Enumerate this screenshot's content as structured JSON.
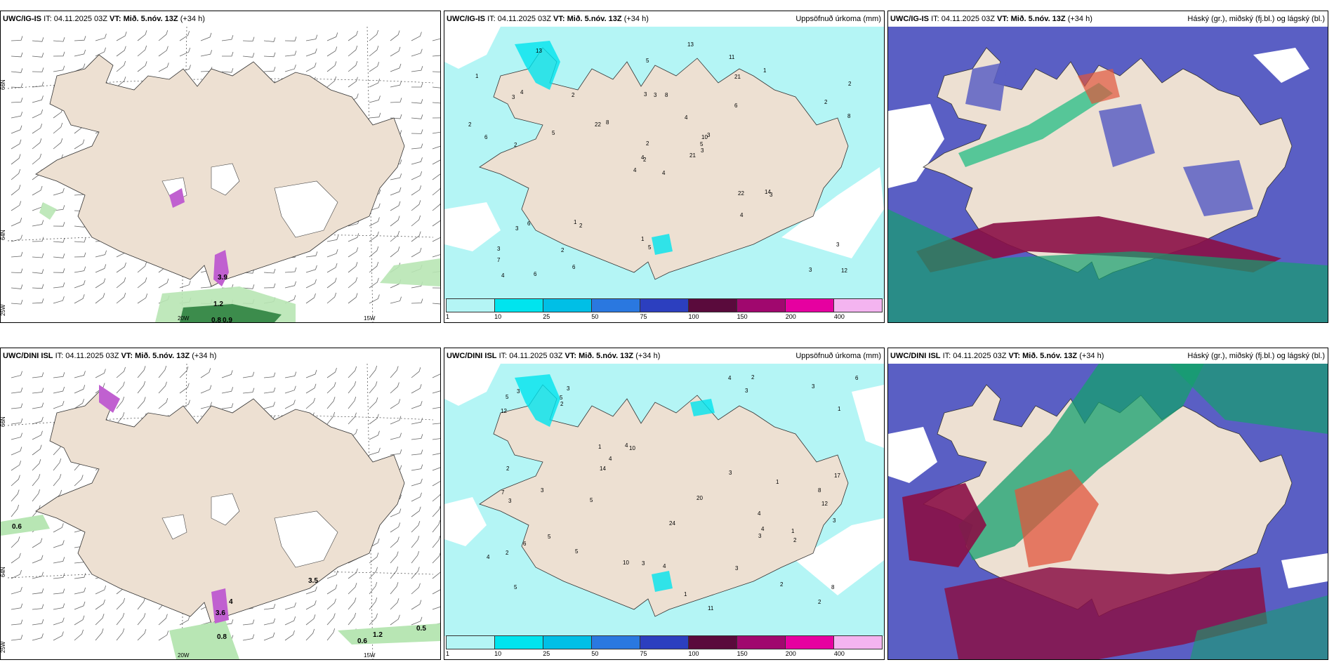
{
  "panels": [
    {
      "model": "UWC/IG-IS",
      "it": "IT: 04.11.2025 03Z",
      "vt_label": "VT:",
      "vt": "Mið. 5.nóv. 13Z",
      "lead": "(+34 h)",
      "right": ""
    },
    {
      "model": "UWC/IG-IS",
      "it": "IT: 04.11.2025 03Z",
      "vt_label": "VT:",
      "vt": "Mið. 5.nóv. 13Z",
      "lead": "(+34 h)",
      "right": "Uppsöfnuð úrkoma (mm)"
    },
    {
      "model": "UWC/IG-IS",
      "it": "IT: 04.11.2025 03Z",
      "vt_label": "VT:",
      "vt": "Mið. 5.nóv. 13Z",
      "lead": "(+34 h)",
      "right": "Háský (gr.), miðský (fj.bl.) og lágský (bl.)"
    },
    {
      "model": "UWC/DINI ISL",
      "it": "IT: 04.11.2025 03Z",
      "vt_label": "VT:",
      "vt": "Mið. 5.nóv. 13Z",
      "lead": "(+34 h)",
      "right": ""
    },
    {
      "model": "UWC/DINI ISL",
      "it": "IT: 04.11.2025 03Z",
      "vt_label": "VT:",
      "vt": "Mið. 5.nóv. 13Z",
      "lead": "(+34 h)",
      "right": "Uppsöfnuð úrkoma (mm)"
    },
    {
      "model": "UWC/DINI ISL",
      "it": "IT: 04.11.2025 03Z",
      "vt_label": "VT:",
      "vt": "Mið. 5.nóv. 13Z",
      "lead": "(+34 h)",
      "right": "Háský (gr.), miðský (fj.bl.) og lágský (bl.)"
    }
  ],
  "axis_labels": {
    "lat66": "66N",
    "lat64": "64N",
    "lon25": "25W",
    "lon20": "20W",
    "lon15": "15W"
  },
  "colorbar": {
    "ticks": [
      "1",
      "10",
      "25",
      "50",
      "75",
      "100",
      "150",
      "200",
      "400"
    ],
    "colors": [
      "#b4f5f5",
      "#00e4ee",
      "#00bfe6",
      "#2a78e0",
      "#2c3fbf",
      "#5a0a3c",
      "#a0086e",
      "#e600a0",
      "#f4b4f0"
    ]
  },
  "wind_values_top": [
    "3.9",
    "1.2",
    "0.8",
    "0.9"
  ],
  "wind_values_bottom": [
    "0.6",
    "3.6",
    "4",
    "0.8",
    "3.5",
    "1.2",
    "0.6",
    "0.5"
  ],
  "precip_top": [
    "4",
    "3",
    "2",
    "3",
    "10",
    "2",
    "11",
    "8",
    "21",
    "21",
    "13",
    "12",
    "2",
    "2",
    "4",
    "6",
    "6",
    "3",
    "4",
    "6",
    "8",
    "7",
    "2",
    "3",
    "3",
    "3",
    "4",
    "5",
    "6",
    "22",
    "8",
    "4",
    "1",
    "2",
    "2",
    "1",
    "1",
    "3",
    "3",
    "14",
    "13",
    "22",
    "5",
    "4",
    "6",
    "2",
    "5",
    "4",
    "5",
    "3",
    "3",
    "2",
    "1"
  ],
  "precip_bottom": [
    "4",
    "12",
    "5",
    "3",
    "10",
    "2",
    "2",
    "3",
    "1",
    "11",
    "12",
    "7",
    "5",
    "8",
    "10",
    "17",
    "24",
    "20",
    "4",
    "5",
    "6",
    "3",
    "14",
    "3",
    "4",
    "5",
    "4",
    "3",
    "2",
    "1",
    "1",
    "3",
    "4",
    "5",
    "8",
    "2",
    "3",
    "3",
    "4",
    "6",
    "1",
    "2",
    "2",
    "3",
    "1",
    "5",
    "4",
    "3",
    "3",
    "2"
  ],
  "colors": {
    "land": "#ede0d2",
    "sea_precip": "#b4f5f5",
    "cloud_high": "#14a06e",
    "cloud_mid": "#5a5fc4",
    "cloud_low": "#8a1046"
  }
}
